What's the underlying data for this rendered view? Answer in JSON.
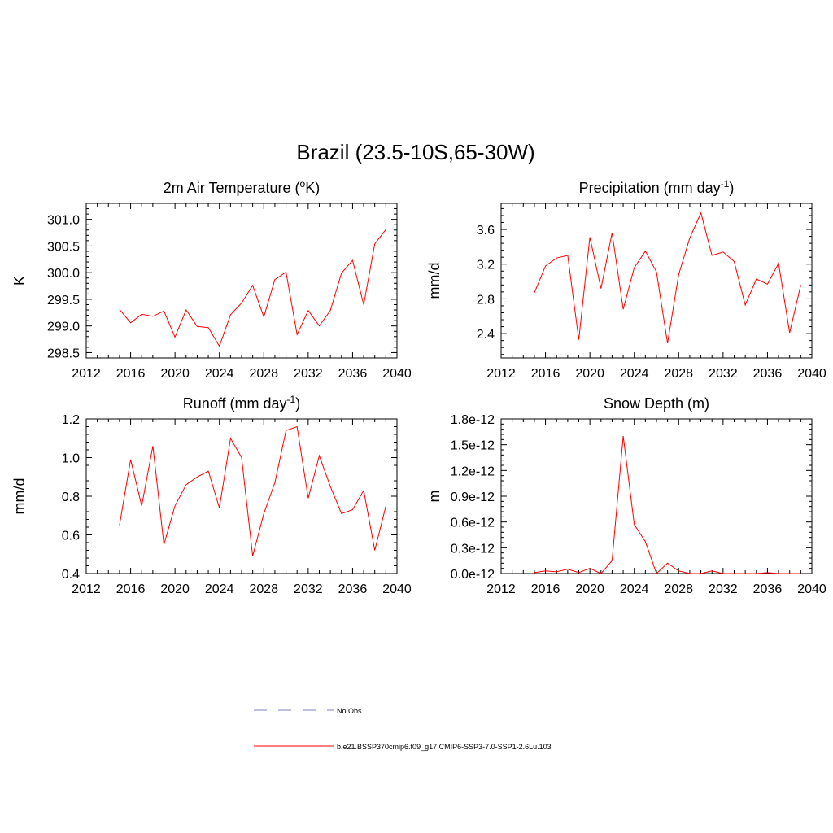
{
  "figure_title": "Brazil (23.5-10S,65-30W)",
  "legend": [
    {
      "label": "No Obs",
      "color": "#9999cc",
      "dash": true
    },
    {
      "label": "b.e21.BSSP370cmip6.f09_g17.CMIP6-SSP3-7.0-SSP1-2.6Lu.103",
      "color": "#ff0000",
      "dash": false
    }
  ],
  "chart_data": [
    {
      "type": "line",
      "title_main": "2m Air Temperature (",
      "title_sup": "o",
      "title_end": "K)",
      "ylabel": "K",
      "xlim": [
        2012,
        2040
      ],
      "xticks": [
        "2012",
        "2016",
        "2020",
        "2024",
        "2028",
        "2032",
        "2036",
        "2040"
      ],
      "ylim": [
        298.4,
        301.3
      ],
      "yticks": [
        "298.5",
        "299.0",
        "299.5",
        "300.0",
        "300.5",
        "301.0"
      ],
      "ytick_values": [
        298.5,
        299.0,
        299.5,
        300.0,
        300.5,
        301.0
      ],
      "series": [
        {
          "name": "b.e21.BSSP370cmip6.f09_g17.CMIP6-SSP3-7.0-SSP1-2.6Lu.103",
          "color": "#ff0000",
          "x": [
            2015,
            2016,
            2017,
            2018,
            2019,
            2020,
            2021,
            2022,
            2023,
            2024,
            2025,
            2026,
            2027,
            2028,
            2029,
            2030,
            2031,
            2032,
            2033,
            2034,
            2035,
            2036,
            2037,
            2038,
            2039
          ],
          "values": [
            299.31,
            299.06,
            299.22,
            299.18,
            299.28,
            298.79,
            299.3,
            298.99,
            298.97,
            298.62,
            299.21,
            299.43,
            299.76,
            299.17,
            299.87,
            300.01,
            298.84,
            299.29,
            299.0,
            299.29,
            299.99,
            300.23,
            299.4,
            300.54,
            300.81
          ]
        }
      ]
    },
    {
      "type": "line",
      "title_main": "Precipitation (mm day",
      "title_sup": "-1",
      "title_end": ")",
      "ylabel": "mm/d",
      "xlim": [
        2012,
        2040
      ],
      "xticks": [
        "2012",
        "2016",
        "2020",
        "2024",
        "2028",
        "2032",
        "2036",
        "2040"
      ],
      "ylim": [
        2.12,
        3.9
      ],
      "yticks": [
        "2.4",
        "2.8",
        "3.2",
        "3.6"
      ],
      "ytick_values": [
        2.4,
        2.8,
        3.2,
        3.6
      ],
      "series": [
        {
          "name": "b.e21.BSSP370cmip6.f09_g17.CMIP6-SSP3-7.0-SSP1-2.6Lu.103",
          "color": "#ff0000",
          "x": [
            2015,
            2016,
            2017,
            2018,
            2019,
            2020,
            2021,
            2022,
            2023,
            2024,
            2025,
            2026,
            2027,
            2028,
            2029,
            2030,
            2031,
            2032,
            2033,
            2034,
            2035,
            2036,
            2037,
            2038,
            2039
          ],
          "values": [
            2.87,
            3.18,
            3.27,
            3.3,
            2.33,
            3.51,
            2.92,
            3.56,
            2.68,
            3.16,
            3.35,
            3.11,
            2.29,
            3.08,
            3.5,
            3.79,
            3.3,
            3.34,
            3.23,
            2.73,
            3.03,
            2.97,
            3.21,
            2.41,
            2.96
          ]
        }
      ]
    },
    {
      "type": "line",
      "title_main": "Runoff (mm day",
      "title_sup": "-1",
      "title_end": ")",
      "ylabel": "mm/d",
      "xlim": [
        2012,
        2040
      ],
      "xticks": [
        "2012",
        "2016",
        "2020",
        "2024",
        "2028",
        "2032",
        "2036",
        "2040"
      ],
      "ylim": [
        0.4,
        1.2
      ],
      "yticks": [
        "0.4",
        "0.6",
        "0.8",
        "1.0",
        "1.2"
      ],
      "ytick_values": [
        0.4,
        0.6,
        0.8,
        1.0,
        1.2
      ],
      "series": [
        {
          "name": "b.e21.BSSP370cmip6.f09_g17.CMIP6-SSP3-7.0-SSP1-2.6Lu.103",
          "color": "#ff0000",
          "x": [
            2015,
            2016,
            2017,
            2018,
            2019,
            2020,
            2021,
            2022,
            2023,
            2024,
            2025,
            2026,
            2027,
            2028,
            2029,
            2030,
            2031,
            2032,
            2033,
            2034,
            2035,
            2036,
            2037,
            2038,
            2039
          ],
          "values": [
            0.65,
            0.99,
            0.75,
            1.06,
            0.55,
            0.75,
            0.86,
            0.9,
            0.93,
            0.74,
            1.1,
            1.0,
            0.49,
            0.71,
            0.87,
            1.14,
            1.16,
            0.79,
            1.01,
            0.85,
            0.71,
            0.73,
            0.83,
            0.52,
            0.75
          ]
        }
      ]
    },
    {
      "type": "line",
      "title_main": "Snow Depth (m)",
      "title_sup": "",
      "title_end": "",
      "ylabel": "m",
      "xlim": [
        2012,
        2040
      ],
      "xticks": [
        "2012",
        "2016",
        "2020",
        "2024",
        "2028",
        "2032",
        "2036",
        "2040"
      ],
      "ylim": [
        0,
        1.8
      ],
      "yticks": [
        "0.0e-12",
        "0.3e-12",
        "0.6e-12",
        "0.9e-12",
        "1.2e-12",
        "1.5e-12",
        "1.8e-12"
      ],
      "ytick_values": [
        0,
        0.3,
        0.6,
        0.9,
        1.2,
        1.5,
        1.8
      ],
      "y_scale_note": "values in units of 1e-12 m",
      "series": [
        {
          "name": "b.e21.BSSP370cmip6.f09_g17.CMIP6-SSP3-7.0-SSP1-2.6Lu.103",
          "color": "#ff0000",
          "x": [
            2015,
            2016,
            2017,
            2018,
            2019,
            2020,
            2021,
            2022,
            2023,
            2024,
            2025,
            2026,
            2027,
            2028,
            2029,
            2030,
            2031,
            2032,
            2033,
            2034,
            2035,
            2036,
            2037,
            2038,
            2039
          ],
          "values": [
            0.01,
            0.03,
            0.02,
            0.05,
            0.01,
            0.06,
            0.0,
            0.15,
            1.6,
            0.57,
            0.37,
            0.0,
            0.12,
            0.03,
            0.0,
            0.0,
            0.03,
            0.0,
            0.0,
            0.0,
            0.0,
            0.01,
            0.0,
            0.0,
            0.0
          ]
        }
      ]
    }
  ]
}
